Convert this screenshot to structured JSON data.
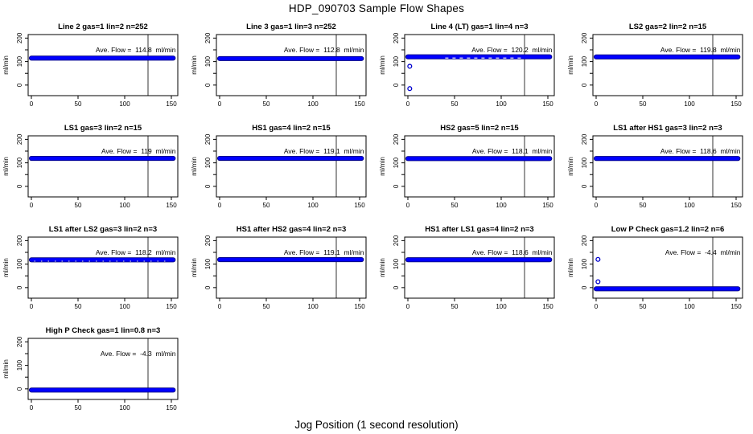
{
  "title": "HDP_090703  Sample Flow Shapes",
  "xlabel": "Jog Position (1 second resolution)",
  "colors": {
    "point": "#0000ff",
    "point_edge": "#000080",
    "outlier": "#0000cd",
    "axis": "#000000",
    "background": "#ffffff"
  },
  "chart_data": {
    "type": "scatter",
    "title": "HDP_090703  Sample Flow Shapes",
    "xlabel": "Jog Position (1 second resolution)",
    "ylabel": "ml/min",
    "grid": false,
    "layout": {
      "rows": 4,
      "cols": 4
    },
    "xlim": [
      -4,
      157
    ],
    "ylim": [
      -45,
      215
    ],
    "x_ticks": [
      0,
      50,
      100,
      150
    ],
    "y_ticks_all": [
      0,
      50,
      100,
      150,
      200
    ],
    "y_ticks_labeled": [
      0,
      100,
      200
    ],
    "vline_x": 125,
    "band_x": [
      0,
      152
    ],
    "panels": [
      {
        "title": "Line 2 gas=1 lin=2 n=252",
        "ave_flow": 114.8,
        "ave_label": "Ave. Flow =  114.8  ml/min",
        "band_y": 114.8,
        "band_style": "solid",
        "outliers": []
      },
      {
        "title": "Line 3 gas=1 lin=3 n=252",
        "ave_flow": 112.8,
        "ave_label": "Ave. Flow =  112.8  ml/min",
        "band_y": 112.8,
        "band_style": "solid",
        "outliers": []
      },
      {
        "title": "Line 4 (LT) gas=1 lin=4 n=3",
        "ave_flow": 120.2,
        "ave_label": "Ave. Flow =  120.2  ml/min",
        "band_y": 120.2,
        "band_style": "dashed",
        "outliers": [
          [
            2,
            80
          ],
          [
            2,
            -15
          ]
        ]
      },
      {
        "title": "LS2 gas=2 lin=2 n=15",
        "ave_flow": 119.8,
        "ave_label": "Ave. Flow =  119.8  ml/min",
        "band_y": 119.8,
        "band_style": "solid",
        "outliers": []
      },
      {
        "title": "LS1 gas=3 lin=2 n=15",
        "ave_flow": 119,
        "ave_label": "Ave. Flow =  119  ml/min",
        "band_y": 119,
        "band_style": "solid",
        "outliers": []
      },
      {
        "title": "HS1 gas=4 lin=2 n=15",
        "ave_flow": 119.1,
        "ave_label": "Ave. Flow =  119.1  ml/min",
        "band_y": 119.1,
        "band_style": "solid",
        "outliers": []
      },
      {
        "title": "HS2 gas=5 lin=2 n=15",
        "ave_flow": 118.1,
        "ave_label": "Ave. Flow =  118.1  ml/min",
        "band_y": 118.1,
        "band_style": "solid",
        "outliers": []
      },
      {
        "title": "LS1 after HS1 gas=3 lin=2 n=3",
        "ave_flow": 118.6,
        "ave_label": "Ave. Flow =  118.6  ml/min",
        "band_y": 118.6,
        "band_style": "solid",
        "outliers": []
      },
      {
        "title": "LS1 after LS2 gas=3 lin=2 n=3",
        "ave_flow": 118.2,
        "ave_label": "Ave. Flow =  118.2  ml/min",
        "band_y": 118.2,
        "band_style": "dotted",
        "outliers": []
      },
      {
        "title": "HS1 after HS2 gas=4 lin=2 n=3",
        "ave_flow": 119.1,
        "ave_label": "Ave. Flow =  119.1  ml/min",
        "band_y": 119.1,
        "band_style": "solid",
        "outliers": []
      },
      {
        "title": "HS1 after LS1 gas=4 lin=2 n=3",
        "ave_flow": 118.6,
        "ave_label": "Ave. Flow =  118.6  ml/min",
        "band_y": 118.6,
        "band_style": "solid",
        "outliers": []
      },
      {
        "title": "Low P Check gas=1.2 lin=2 n=6",
        "ave_flow": -4.4,
        "ave_label": "Ave. Flow =  -4.4  ml/min",
        "band_y": -5,
        "band_style": "solid",
        "outliers": [
          [
            2,
            120
          ],
          [
            2,
            25
          ]
        ]
      },
      {
        "title": "High P Check gas=1 lin=0.8 n=3",
        "ave_flow": -4.3,
        "ave_label": "Ave. Flow =  -4.3  ml/min",
        "band_y": -5,
        "band_style": "solid",
        "outliers": []
      }
    ]
  }
}
